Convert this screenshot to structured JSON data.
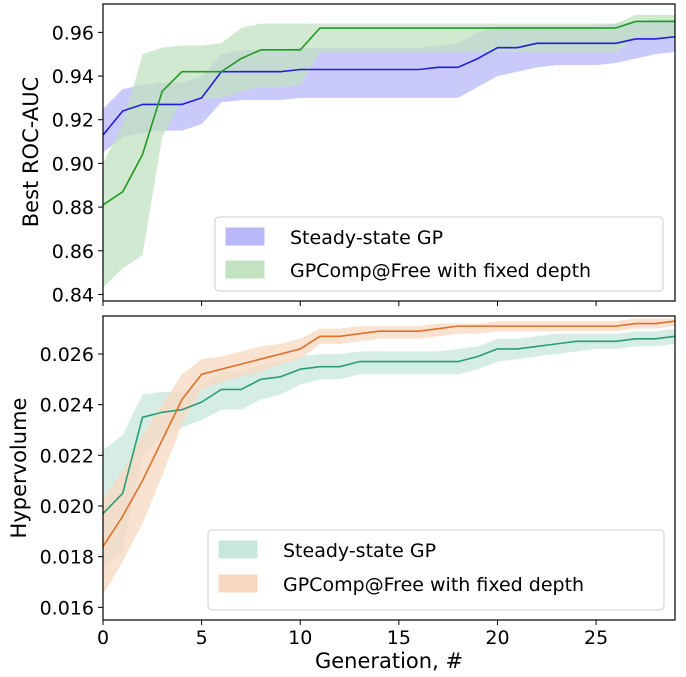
{
  "chart_data": [
    {
      "type": "line",
      "panel": "top",
      "title": "",
      "xlabel": "",
      "ylabel": "Best ROC-AUC",
      "xlim": [
        0,
        29
      ],
      "ylim": [
        0.837,
        0.973
      ],
      "xticks": [
        0,
        5,
        10,
        15,
        20,
        25
      ],
      "yticks": [
        0.84,
        0.86,
        0.88,
        0.9,
        0.92,
        0.94,
        0.96
      ],
      "ytick_labels": [
        "0.84",
        "0.86",
        "0.88",
        "0.90",
        "0.92",
        "0.94",
        "0.96"
      ],
      "grid": false,
      "legend_position": "lower-right",
      "x": [
        0,
        1,
        2,
        3,
        4,
        5,
        6,
        7,
        8,
        9,
        10,
        11,
        12,
        13,
        14,
        15,
        16,
        17,
        18,
        19,
        20,
        21,
        22,
        23,
        24,
        25,
        26,
        27,
        28,
        29
      ],
      "series": [
        {
          "name": "Steady-state GP",
          "color": "#1f1fd6",
          "band_color": "#b8b8f8",
          "values": [
            0.913,
            0.924,
            0.927,
            0.927,
            0.927,
            0.93,
            0.942,
            0.942,
            0.942,
            0.942,
            0.943,
            0.943,
            0.943,
            0.943,
            0.943,
            0.943,
            0.943,
            0.944,
            0.944,
            0.948,
            0.953,
            0.953,
            0.955,
            0.955,
            0.955,
            0.955,
            0.955,
            0.957,
            0.957,
            0.958
          ],
          "lower": [
            0.905,
            0.912,
            0.914,
            0.915,
            0.915,
            0.918,
            0.928,
            0.929,
            0.929,
            0.929,
            0.93,
            0.93,
            0.93,
            0.93,
            0.93,
            0.93,
            0.93,
            0.93,
            0.93,
            0.935,
            0.94,
            0.942,
            0.944,
            0.945,
            0.945,
            0.945,
            0.946,
            0.948,
            0.95,
            0.951
          ],
          "upper": [
            0.925,
            0.934,
            0.936,
            0.937,
            0.937,
            0.94,
            0.95,
            0.952,
            0.952,
            0.952,
            0.953,
            0.953,
            0.953,
            0.953,
            0.953,
            0.953,
            0.953,
            0.954,
            0.955,
            0.96,
            0.963,
            0.963,
            0.963,
            0.963,
            0.963,
            0.963,
            0.964,
            0.965,
            0.966,
            0.966
          ]
        },
        {
          "name": "GPComp@Free with fixed depth",
          "color": "#229922",
          "band_color": "#c2e2c2",
          "values": [
            0.881,
            0.887,
            0.904,
            0.933,
            0.942,
            0.942,
            0.942,
            0.948,
            0.952,
            0.952,
            0.952,
            0.962,
            0.962,
            0.962,
            0.962,
            0.962,
            0.962,
            0.962,
            0.962,
            0.962,
            0.962,
            0.962,
            0.962,
            0.962,
            0.962,
            0.962,
            0.962,
            0.965,
            0.965,
            0.965
          ],
          "lower": [
            0.843,
            0.852,
            0.858,
            0.912,
            0.929,
            0.93,
            0.93,
            0.933,
            0.935,
            0.935,
            0.936,
            0.951,
            0.951,
            0.951,
            0.951,
            0.951,
            0.951,
            0.951,
            0.951,
            0.951,
            0.951,
            0.951,
            0.951,
            0.951,
            0.951,
            0.951,
            0.951,
            0.958,
            0.958,
            0.958
          ],
          "upper": [
            0.9,
            0.918,
            0.95,
            0.953,
            0.954,
            0.954,
            0.955,
            0.962,
            0.964,
            0.964,
            0.964,
            0.964,
            0.964,
            0.964,
            0.964,
            0.964,
            0.964,
            0.964,
            0.964,
            0.964,
            0.964,
            0.964,
            0.964,
            0.964,
            0.964,
            0.964,
            0.964,
            0.968,
            0.968,
            0.968
          ]
        }
      ]
    },
    {
      "type": "line",
      "panel": "bottom",
      "title": "",
      "xlabel": "Generation, #",
      "ylabel": "Hypervolume",
      "xlim": [
        0,
        29
      ],
      "ylim": [
        0.0155,
        0.0275
      ],
      "xticks": [
        0,
        5,
        10,
        15,
        20,
        25
      ],
      "yticks": [
        0.016,
        0.018,
        0.02,
        0.022,
        0.024,
        0.026
      ],
      "ytick_labels": [
        "0.016",
        "0.018",
        "0.020",
        "0.022",
        "0.024",
        "0.026"
      ],
      "grid": false,
      "legend_position": "lower-right",
      "x": [
        0,
        1,
        2,
        3,
        4,
        5,
        6,
        7,
        8,
        9,
        10,
        11,
        12,
        13,
        14,
        15,
        16,
        17,
        18,
        19,
        20,
        21,
        22,
        23,
        24,
        25,
        26,
        27,
        28,
        29
      ],
      "series": [
        {
          "name": "Steady-state GP",
          "color": "#2a9d78",
          "band_color": "#c7e7dc",
          "values": [
            0.0197,
            0.0205,
            0.0235,
            0.0237,
            0.0238,
            0.0241,
            0.0246,
            0.0246,
            0.025,
            0.0251,
            0.0254,
            0.0255,
            0.0255,
            0.0257,
            0.0257,
            0.0257,
            0.0257,
            0.0257,
            0.0257,
            0.0259,
            0.0262,
            0.0262,
            0.0263,
            0.0264,
            0.0265,
            0.0265,
            0.0265,
            0.0266,
            0.0266,
            0.0267
          ],
          "lower": [
            0.0175,
            0.0182,
            0.022,
            0.0228,
            0.0231,
            0.0234,
            0.0238,
            0.0238,
            0.0242,
            0.0244,
            0.0248,
            0.025,
            0.025,
            0.0252,
            0.0252,
            0.0252,
            0.0252,
            0.0252,
            0.0252,
            0.0254,
            0.0257,
            0.0258,
            0.0259,
            0.026,
            0.0261,
            0.0262,
            0.0262,
            0.0263,
            0.0263,
            0.0264
          ],
          "upper": [
            0.0222,
            0.0228,
            0.0244,
            0.0245,
            0.0245,
            0.0248,
            0.0253,
            0.0253,
            0.0256,
            0.0257,
            0.0259,
            0.026,
            0.026,
            0.0261,
            0.0261,
            0.0261,
            0.0261,
            0.0261,
            0.0262,
            0.0263,
            0.0266,
            0.0266,
            0.0267,
            0.0268,
            0.0268,
            0.0268,
            0.0268,
            0.0269,
            0.0269,
            0.027
          ]
        },
        {
          "name": "GPComp@Free with fixed depth",
          "color": "#e0702a",
          "band_color": "#f8d8c0",
          "values": [
            0.0184,
            0.0196,
            0.021,
            0.0226,
            0.0242,
            0.0252,
            0.0254,
            0.0256,
            0.0258,
            0.026,
            0.0262,
            0.0267,
            0.0267,
            0.0268,
            0.0269,
            0.0269,
            0.0269,
            0.027,
            0.0271,
            0.0271,
            0.0271,
            0.0271,
            0.0271,
            0.0271,
            0.0271,
            0.0271,
            0.0271,
            0.0272,
            0.0272,
            0.0273
          ],
          "lower": [
            0.0165,
            0.0178,
            0.0193,
            0.0212,
            0.0232,
            0.0246,
            0.0249,
            0.0251,
            0.0253,
            0.0256,
            0.0258,
            0.0264,
            0.0264,
            0.0265,
            0.0266,
            0.0266,
            0.0266,
            0.0267,
            0.0268,
            0.0268,
            0.0269,
            0.0269,
            0.0269,
            0.0269,
            0.0269,
            0.0269,
            0.0269,
            0.027,
            0.027,
            0.0271
          ],
          "upper": [
            0.0203,
            0.0214,
            0.0228,
            0.024,
            0.0252,
            0.0258,
            0.0259,
            0.0261,
            0.0263,
            0.0264,
            0.0266,
            0.027,
            0.027,
            0.0271,
            0.0271,
            0.0271,
            0.0271,
            0.0272,
            0.0272,
            0.0272,
            0.0273,
            0.0273,
            0.0273,
            0.0273,
            0.0273,
            0.0273,
            0.0273,
            0.0274,
            0.0274,
            0.0274
          ]
        }
      ]
    }
  ]
}
